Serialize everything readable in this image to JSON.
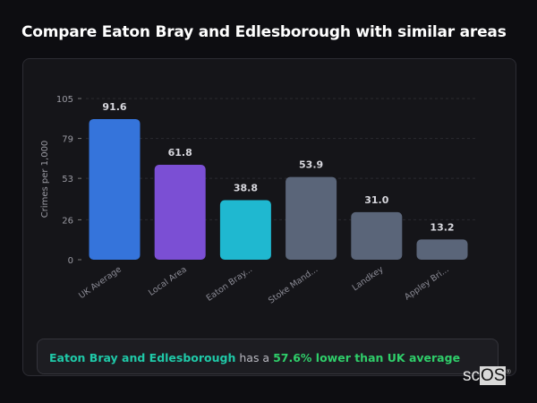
{
  "title": "Compare Eaton Bray and Edlesborough with similar areas",
  "summary": {
    "area": "Eaton Bray and Edlesborough",
    "middle": " has a ",
    "comparison": "57.6% lower than UK average"
  },
  "logo": {
    "text_a": "sc",
    "text_b": "OS",
    "mark": "®"
  },
  "chart_data": {
    "type": "bar",
    "categories": [
      "UK Average",
      "Local Area",
      "Eaton Bray...",
      "Stoke Mand...",
      "Landkey",
      "Appley Bri..."
    ],
    "values": [
      91.6,
      61.8,
      38.8,
      53.9,
      31.0,
      13.2
    ],
    "value_labels": [
      "91.6",
      "61.8",
      "38.8",
      "53.9",
      "31.0",
      "13.2"
    ],
    "colors": [
      "#3574db",
      "#7b4fd4",
      "#1fb8d0",
      "#5a6579",
      "#5a6579",
      "#5a6579"
    ],
    "ylabel": "Crimes per 1,000",
    "xlabel": "",
    "ylim": [
      0,
      105
    ],
    "yticks": [
      0,
      26,
      53,
      79,
      105
    ],
    "grid": true,
    "legend": "none"
  }
}
